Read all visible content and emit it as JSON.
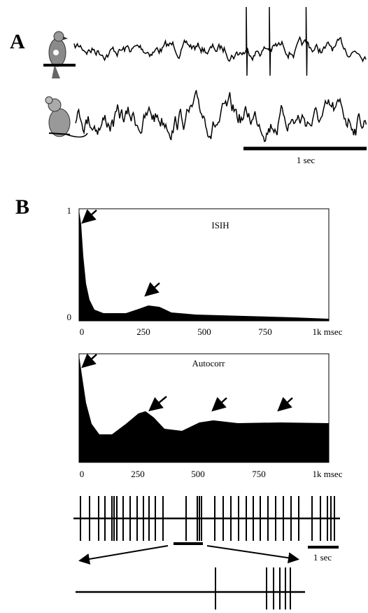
{
  "panel_a": {
    "label": "A",
    "scale_bar": "1 sec"
  },
  "panel_b": {
    "label": "B",
    "isih": {
      "title": "ISIH",
      "y_ticks": [
        "1",
        "0"
      ],
      "x_ticks": [
        "0",
        "250",
        "500",
        "750",
        "1k msec"
      ]
    },
    "autocorr": {
      "title": "Autocorr",
      "x_ticks": [
        "0",
        "250",
        "500",
        "750",
        "1k msec"
      ]
    },
    "raster": {
      "scale_bar": "1 sec"
    }
  }
}
